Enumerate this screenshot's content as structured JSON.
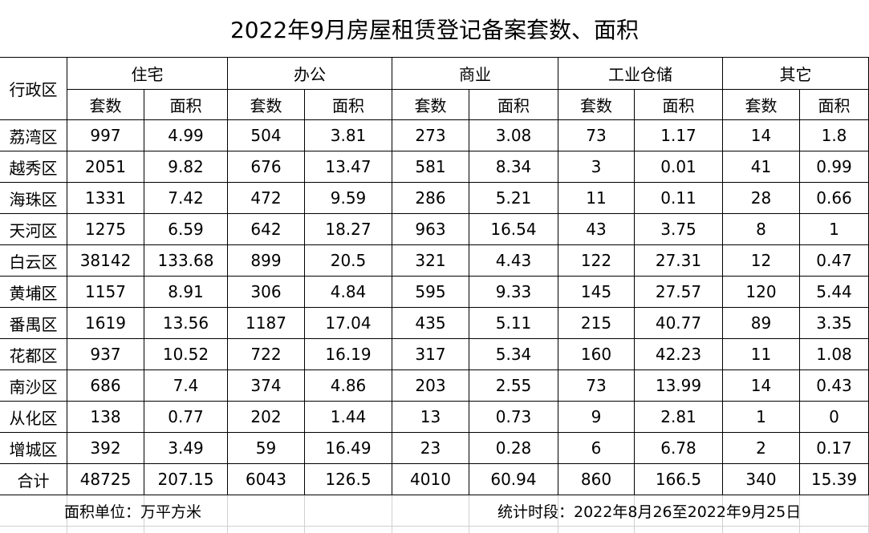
{
  "title": "2022年9月房屋租赁登记备案套数、面积",
  "header": {
    "region_label": "行政区",
    "groups": [
      {
        "name": "住宅",
        "columns": [
          "套数",
          "面积"
        ]
      },
      {
        "name": "办公",
        "columns": [
          "套数",
          "面积"
        ]
      },
      {
        "name": "商业",
        "columns": [
          "套数",
          "面积"
        ]
      },
      {
        "name": "工业仓储",
        "columns": [
          "套数",
          "面积"
        ]
      },
      {
        "name": "其它",
        "columns": [
          "套数",
          "面积"
        ]
      }
    ]
  },
  "rows": [
    {
      "region": "荔湾区",
      "values": [
        997,
        4.99,
        504,
        3.81,
        273,
        3.08,
        73,
        1.17,
        14,
        1.8
      ]
    },
    {
      "region": "越秀区",
      "values": [
        2051,
        9.82,
        676,
        13.47,
        581,
        8.34,
        3,
        0.01,
        41,
        0.99
      ]
    },
    {
      "region": "海珠区",
      "values": [
        1331,
        7.42,
        472,
        9.59,
        286,
        5.21,
        11,
        0.11,
        28,
        0.66
      ]
    },
    {
      "region": "天河区",
      "values": [
        1275,
        6.59,
        642,
        18.27,
        963,
        16.54,
        43,
        3.75,
        8,
        1
      ]
    },
    {
      "region": "白云区",
      "values": [
        38142,
        133.68,
        899,
        20.5,
        321,
        4.43,
        122,
        27.31,
        12,
        0.47
      ]
    },
    {
      "region": "黄埔区",
      "values": [
        1157,
        8.91,
        306,
        4.84,
        595,
        9.33,
        145,
        27.57,
        120,
        5.44
      ]
    },
    {
      "region": "番禺区",
      "values": [
        1619,
        13.56,
        1187,
        17.04,
        435,
        5.11,
        215,
        40.77,
        89,
        3.35
      ]
    },
    {
      "region": "花都区",
      "values": [
        937,
        10.52,
        722,
        16.19,
        317,
        5.34,
        160,
        42.23,
        11,
        1.08
      ]
    },
    {
      "region": "南沙区",
      "values": [
        686,
        7.4,
        374,
        4.86,
        203,
        2.55,
        73,
        13.99,
        14,
        0.43
      ]
    },
    {
      "region": "从化区",
      "values": [
        138,
        0.77,
        202,
        1.44,
        13,
        0.73,
        9,
        2.81,
        1,
        0
      ]
    },
    {
      "region": "增城区",
      "values": [
        392,
        3.49,
        59,
        16.49,
        23,
        0.28,
        6,
        6.78,
        2,
        0.17
      ]
    }
  ],
  "total": {
    "region": "合计",
    "values": [
      48725,
      207.15,
      6043,
      126.5,
      4010,
      60.94,
      860,
      166.5,
      340,
      15.39
    ]
  },
  "footer": {
    "unit_note": "面积单位：万平方米",
    "period_note": "统计时段：2022年8月26至2022年9月25日"
  }
}
